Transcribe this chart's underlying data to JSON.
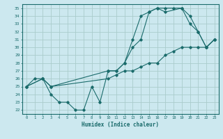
{
  "xlabel": "Humidex (Indice chaleur)",
  "ylabel": "",
  "bg_color": "#cce8ef",
  "grid_color": "#aacccc",
  "line_color": "#1a6b6b",
  "xlim": [
    -0.5,
    23.5
  ],
  "ylim": [
    21.5,
    35.5
  ],
  "xticks": [
    0,
    1,
    2,
    3,
    4,
    5,
    6,
    7,
    8,
    9,
    10,
    11,
    12,
    13,
    14,
    15,
    16,
    17,
    18,
    19,
    20,
    21,
    22,
    23
  ],
  "yticks": [
    22,
    23,
    24,
    25,
    26,
    27,
    28,
    29,
    30,
    31,
    32,
    33,
    34,
    35
  ],
  "line1_x": [
    0,
    1,
    2,
    3,
    4,
    5,
    6,
    7,
    8,
    9,
    10,
    11,
    12,
    13,
    14,
    15,
    16,
    17,
    18,
    19,
    20,
    21,
    22,
    23
  ],
  "line1_y": [
    25,
    26,
    26,
    24,
    23,
    23,
    22,
    22,
    25,
    23,
    27,
    27,
    28,
    31,
    34,
    34.5,
    35,
    35,
    35,
    35,
    33,
    32,
    30,
    31
  ],
  "line2_x": [
    0,
    2,
    3,
    10,
    11,
    12,
    13,
    14,
    15,
    16,
    17,
    18,
    19,
    20,
    21,
    22,
    23
  ],
  "line2_y": [
    25,
    26,
    25,
    26,
    26.5,
    27,
    27,
    27.5,
    28,
    28,
    29,
    29.5,
    30,
    30,
    30,
    30,
    31
  ],
  "line3_x": [
    0,
    2,
    3,
    10,
    11,
    12,
    13,
    14,
    15,
    16,
    17,
    19,
    20,
    21,
    22,
    23
  ],
  "line3_y": [
    25,
    26,
    25,
    27,
    27,
    28,
    30,
    31,
    34.5,
    35,
    34.5,
    35,
    34,
    32,
    30,
    31
  ]
}
